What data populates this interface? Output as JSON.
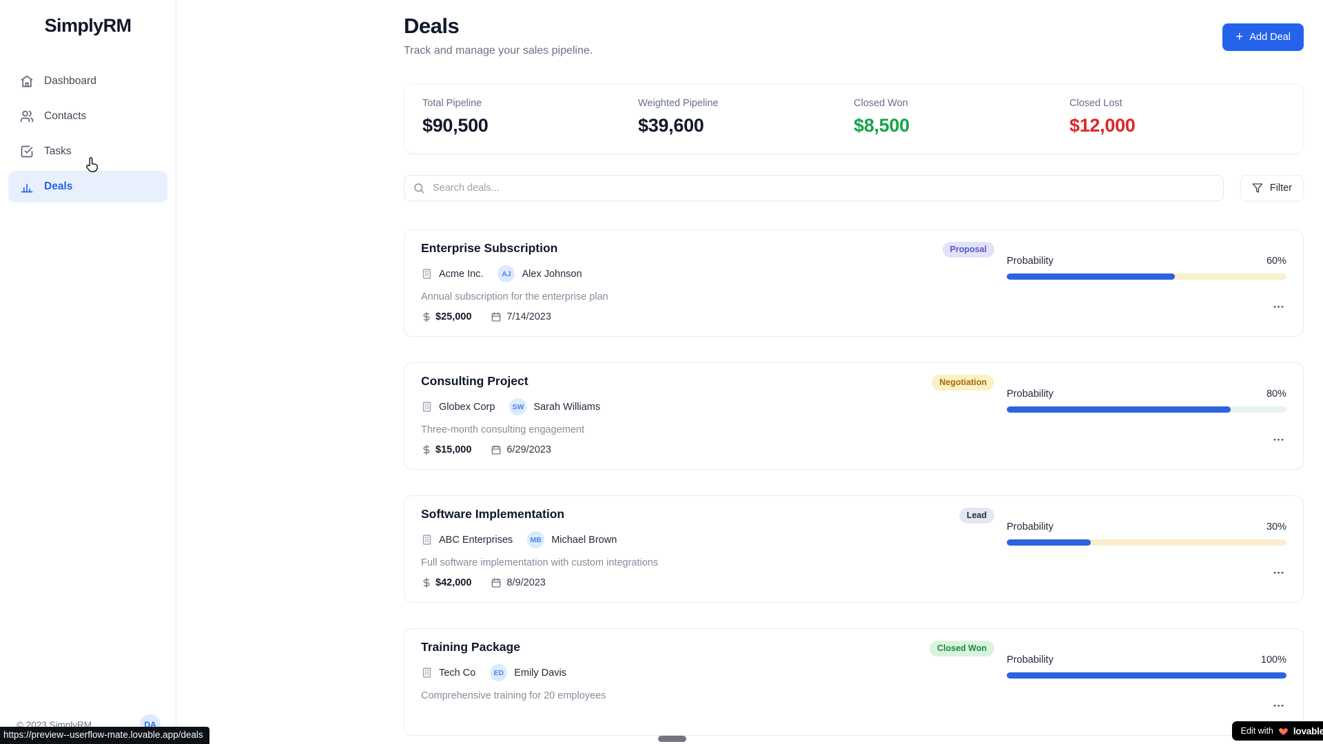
{
  "app": {
    "name": "SimplyRM"
  },
  "sidebar": {
    "logo": "SimplyRM",
    "items": [
      {
        "label": "Dashboard",
        "icon": "home-icon",
        "active": false
      },
      {
        "label": "Contacts",
        "icon": "users-icon",
        "active": false
      },
      {
        "label": "Tasks",
        "icon": "check-square-icon",
        "active": false
      },
      {
        "label": "Deals",
        "icon": "bar-chart-icon",
        "active": true
      }
    ],
    "footer": {
      "copyright": "© 2023 SimplyRM",
      "avatar_initials": "DA"
    }
  },
  "header": {
    "title": "Deals",
    "subtitle": "Track and manage your sales pipeline.",
    "add_button_label": "Add Deal",
    "add_button_color": "#2563eb"
  },
  "stats": [
    {
      "label": "Total Pipeline",
      "value": "$90,500",
      "color": "#111827"
    },
    {
      "label": "Weighted Pipeline",
      "value": "$39,600",
      "color": "#111827"
    },
    {
      "label": "Closed Won",
      "value": "$8,500",
      "color": "#16a34a"
    },
    {
      "label": "Closed Lost",
      "value": "$12,000",
      "color": "#dc2626"
    }
  ],
  "toolbar": {
    "search_placeholder": "Search deals...",
    "search_icon": "search-icon",
    "filter_label": "Filter",
    "filter_icon": "funnel-icon"
  },
  "labels": {
    "probability": "Probability"
  },
  "deals": [
    {
      "title": "Enterprise Subscription",
      "stage": "Proposal",
      "stage_bg": "#e2e3fa",
      "stage_color": "#5558ca",
      "company": "Acme Inc.",
      "initials": "AJ",
      "contact": "Alex Johnson",
      "description": "Annual subscription for the enterprise plan",
      "amount": "$25,000",
      "date": "7/14/2023",
      "probability": "60%",
      "pct": 60,
      "track": "#f8efcd"
    },
    {
      "title": "Consulting Project",
      "stage": "Negotiation",
      "stage_bg": "#fcf0c5",
      "stage_color": "#a16e0a",
      "company": "Globex Corp",
      "initials": "SW",
      "contact": "Sarah Williams",
      "description": "Three-month consulting engagement",
      "amount": "$15,000",
      "date": "6/29/2023",
      "probability": "80%",
      "pct": 80,
      "track": "#e7f3eb"
    },
    {
      "title": "Software Implementation",
      "stage": "Lead",
      "stage_bg": "#e3e8f0",
      "stage_color": "#222e42",
      "company": "ABC Enterprises",
      "initials": "MB",
      "contact": "Michael Brown",
      "description": "Full software implementation with custom integrations",
      "amount": "$42,000",
      "date": "8/9/2023",
      "probability": "30%",
      "pct": 30,
      "track": "#fbedcb"
    },
    {
      "title": "Training Package",
      "stage": "Closed Won",
      "stage_bg": "#d9f4de",
      "stage_color": "#178a42",
      "company": "Tech Co",
      "initials": "ED",
      "contact": "Emily Davis",
      "description": "Comprehensive training for 20 employees",
      "amount": "",
      "date": "",
      "probability": "100%",
      "pct": 100,
      "track": "#eef1f4"
    }
  ],
  "overlays": {
    "status_url": "https://preview--userflow-mate.lovable.app/deals",
    "badge_prefix": "Edit with",
    "badge_brand": "lovable",
    "heart_icon": "heart-icon"
  }
}
